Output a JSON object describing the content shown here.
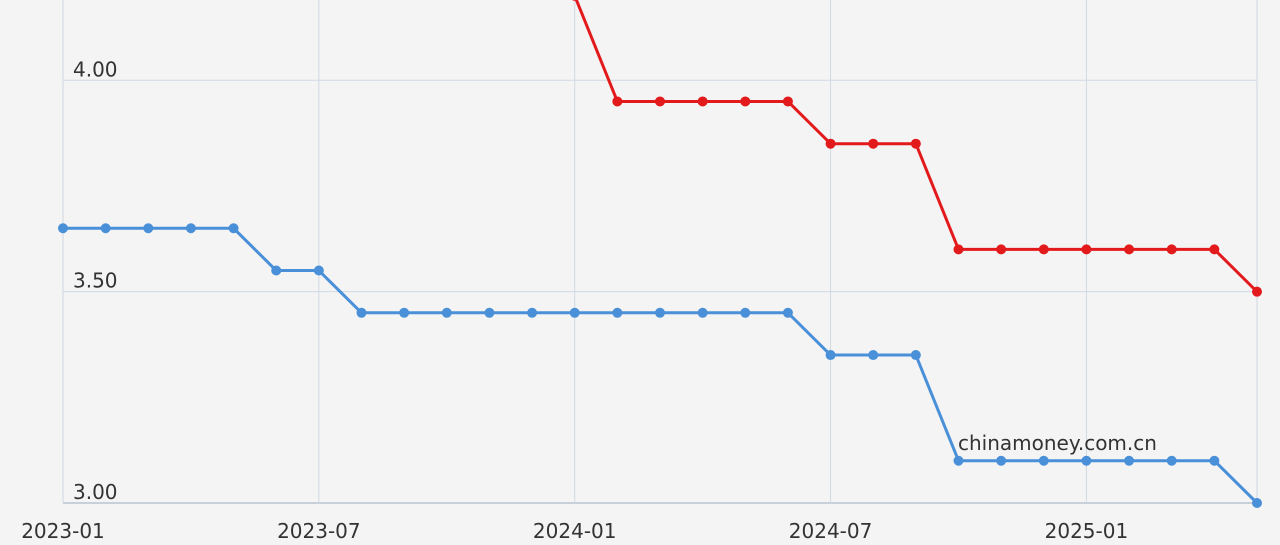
{
  "chart_data": {
    "type": "line",
    "x": [
      "2023-01",
      "2023-02",
      "2023-03",
      "2023-04",
      "2023-05",
      "2023-06",
      "2023-07",
      "2023-08",
      "2023-09",
      "2023-10",
      "2023-11",
      "2023-12",
      "2024-01",
      "2024-02",
      "2024-03",
      "2024-04",
      "2024-05",
      "2024-06",
      "2024-07",
      "2024-08",
      "2024-09",
      "2024-10",
      "2024-11",
      "2024-12",
      "2025-01",
      "2025-02",
      "2025-03",
      "2025-04",
      "2025-05"
    ],
    "series": [
      {
        "color": "#e31a1c",
        "values": [
          null,
          null,
          null,
          null,
          null,
          null,
          null,
          null,
          null,
          null,
          null,
          null,
          4.2,
          3.95,
          3.95,
          3.95,
          3.95,
          3.95,
          3.85,
          3.85,
          3.85,
          3.6,
          3.6,
          3.6,
          3.6,
          3.6,
          3.6,
          3.6,
          3.5
        ]
      },
      {
        "color": "#4a90d9",
        "values": [
          3.65,
          3.65,
          3.65,
          3.65,
          3.65,
          3.55,
          3.55,
          3.45,
          3.45,
          3.45,
          3.45,
          3.45,
          3.45,
          3.45,
          3.45,
          3.45,
          3.45,
          3.45,
          3.35,
          3.35,
          3.35,
          3.1,
          3.1,
          3.1,
          3.1,
          3.1,
          3.1,
          3.1,
          3.0
        ]
      }
    ],
    "ylim": [
      3.0,
      4.19
    ],
    "yticks": [
      {
        "value": 3.0,
        "label": "3.00"
      },
      {
        "value": 3.5,
        "label": "3.50"
      },
      {
        "value": 4.0,
        "label": "4.00"
      }
    ],
    "xticks": [
      "2023-01",
      "2023-07",
      "2024-01",
      "2024-07",
      "2025-01"
    ],
    "grid": true,
    "annotation": "chinamoney.com.cn"
  }
}
